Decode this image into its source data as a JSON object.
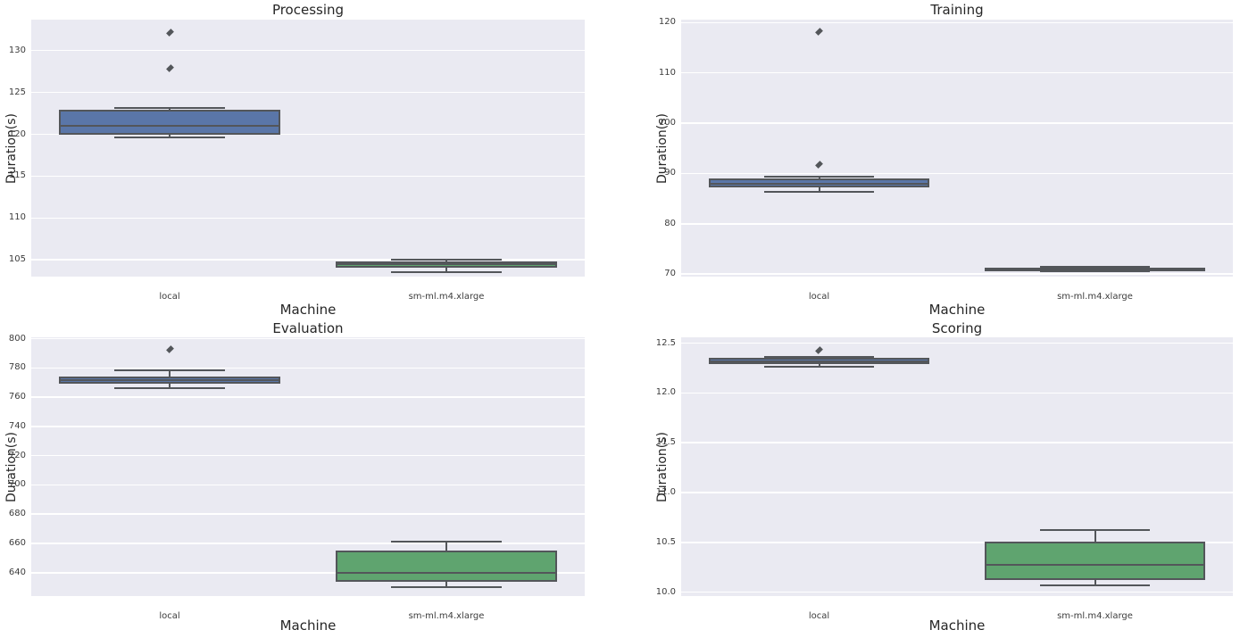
{
  "palette": {
    "plot_bg": "#eaeaf2",
    "grid": "#ffffff",
    "box_blue": "#5a76a8",
    "box_green": "#5fa46f",
    "line": "#53565a",
    "text": "#262626",
    "tick_text": "#3c3c3c"
  },
  "chart_data": [
    {
      "type": "box",
      "title": "Processing",
      "xlabel": "Machine",
      "ylabel": "Duration(s)",
      "categories": [
        "local",
        "sm-ml.m4.xlarge"
      ],
      "ylim": [
        103.0,
        133.7
      ],
      "yticks": [
        105,
        110,
        115,
        120,
        125,
        130
      ],
      "ytick_labels": [
        "105",
        "110",
        "115",
        "120",
        "125",
        "130"
      ],
      "grid": "horizontal-white-on-lavender",
      "legend": "none",
      "boxes": [
        {
          "category": "local",
          "color_key": "box_blue",
          "whislo": 119.6,
          "q1": 120.0,
          "med": 121.0,
          "q3": 122.9,
          "whishi": 123.2,
          "fliers": [
            127.9,
            132.2
          ]
        },
        {
          "category": "sm-ml.m4.xlarge",
          "color_key": "box_green",
          "whislo": 103.5,
          "q1": 104.1,
          "med": 104.45,
          "q3": 104.8,
          "whishi": 105.0,
          "fliers": []
        }
      ]
    },
    {
      "type": "box",
      "title": "Training",
      "xlabel": "Machine",
      "ylabel": "Duration(s)",
      "categories": [
        "local",
        "sm-ml.m4.xlarge"
      ],
      "ylim": [
        69.5,
        120.6
      ],
      "yticks": [
        70,
        80,
        90,
        100,
        110,
        120
      ],
      "ytick_labels": [
        "70",
        "80",
        "90",
        "100",
        "110",
        "120"
      ],
      "grid": "horizontal-white-on-lavender",
      "legend": "none",
      "boxes": [
        {
          "category": "local",
          "color_key": "box_blue",
          "whislo": 86.4,
          "q1": 87.2,
          "med": 87.9,
          "q3": 89.0,
          "whishi": 89.3,
          "fliers": [
            91.7,
            118.2
          ]
        },
        {
          "category": "sm-ml.m4.xlarge",
          "color_key": "box_green",
          "whislo": 70.6,
          "q1": 70.8,
          "med": 71.05,
          "q3": 71.3,
          "whishi": 71.45,
          "fliers": []
        }
      ]
    },
    {
      "type": "box",
      "title": "Evaluation",
      "xlabel": "Machine",
      "ylabel": "Duration(s)",
      "categories": [
        "local",
        "sm-ml.m4.xlarge"
      ],
      "ylim": [
        624.0,
        801.0
      ],
      "yticks": [
        640,
        660,
        680,
        700,
        720,
        740,
        760,
        780,
        800
      ],
      "ytick_labels": [
        "640",
        "660",
        "680",
        "700",
        "720",
        "740",
        "760",
        "780",
        "800"
      ],
      "grid": "horizontal-white-on-lavender",
      "legend": "none",
      "boxes": [
        {
          "category": "local",
          "color_key": "box_blue",
          "whislo": 766.0,
          "q1": 769.5,
          "med": 771.5,
          "q3": 774.0,
          "whishi": 778.5,
          "fliers": [
            792.5
          ]
        },
        {
          "category": "sm-ml.m4.xlarge",
          "color_key": "box_green",
          "whislo": 630.0,
          "q1": 633.5,
          "med": 640.0,
          "q3": 655.0,
          "whishi": 661.0,
          "fliers": []
        }
      ]
    },
    {
      "type": "box",
      "title": "Scoring",
      "xlabel": "Machine",
      "ylabel": "Duration(s)",
      "categories": [
        "local",
        "sm-ml.m4.xlarge"
      ],
      "ylim": [
        9.96,
        12.56
      ],
      "yticks": [
        10.0,
        10.5,
        11.0,
        11.5,
        12.0,
        12.5
      ],
      "ytick_labels": [
        "10.0",
        "10.5",
        "11.0",
        "11.5",
        "12.0",
        "12.5"
      ],
      "grid": "horizontal-white-on-lavender",
      "legend": "none",
      "boxes": [
        {
          "category": "local",
          "color_key": "box_blue",
          "whislo": 12.26,
          "q1": 12.29,
          "med": 12.32,
          "q3": 12.35,
          "whishi": 12.36,
          "fliers": [
            12.43
          ]
        },
        {
          "category": "sm-ml.m4.xlarge",
          "color_key": "box_green",
          "whislo": 10.07,
          "q1": 10.12,
          "med": 10.27,
          "q3": 10.51,
          "whishi": 10.62,
          "fliers": []
        }
      ]
    }
  ]
}
